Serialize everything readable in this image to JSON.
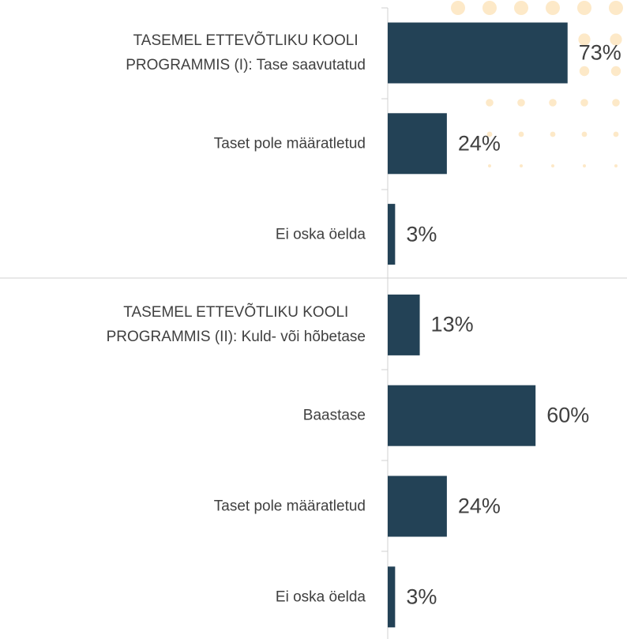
{
  "chart_data": {
    "type": "bar",
    "orientation": "horizontal",
    "categories": [
      "TASEMEL ETTEVÕTLIKU KOOLI\nPROGRAMMIS (I): Tase saavutatud",
      "Taset pole määratletud",
      "Ei oska öelda",
      "TASEMEL ETTEVÕTLIKU KOOLI\nPROGRAMMIS (II): Kuld- või hõbetase",
      "Baastase",
      "Taset pole määratletud",
      "Ei oska öelda"
    ],
    "values": [
      73,
      24,
      3,
      13,
      60,
      24,
      3
    ],
    "value_labels": [
      "73%",
      "24%",
      "3%",
      "13%",
      "60%",
      "24%",
      "3%"
    ],
    "color": "#234256"
  }
}
